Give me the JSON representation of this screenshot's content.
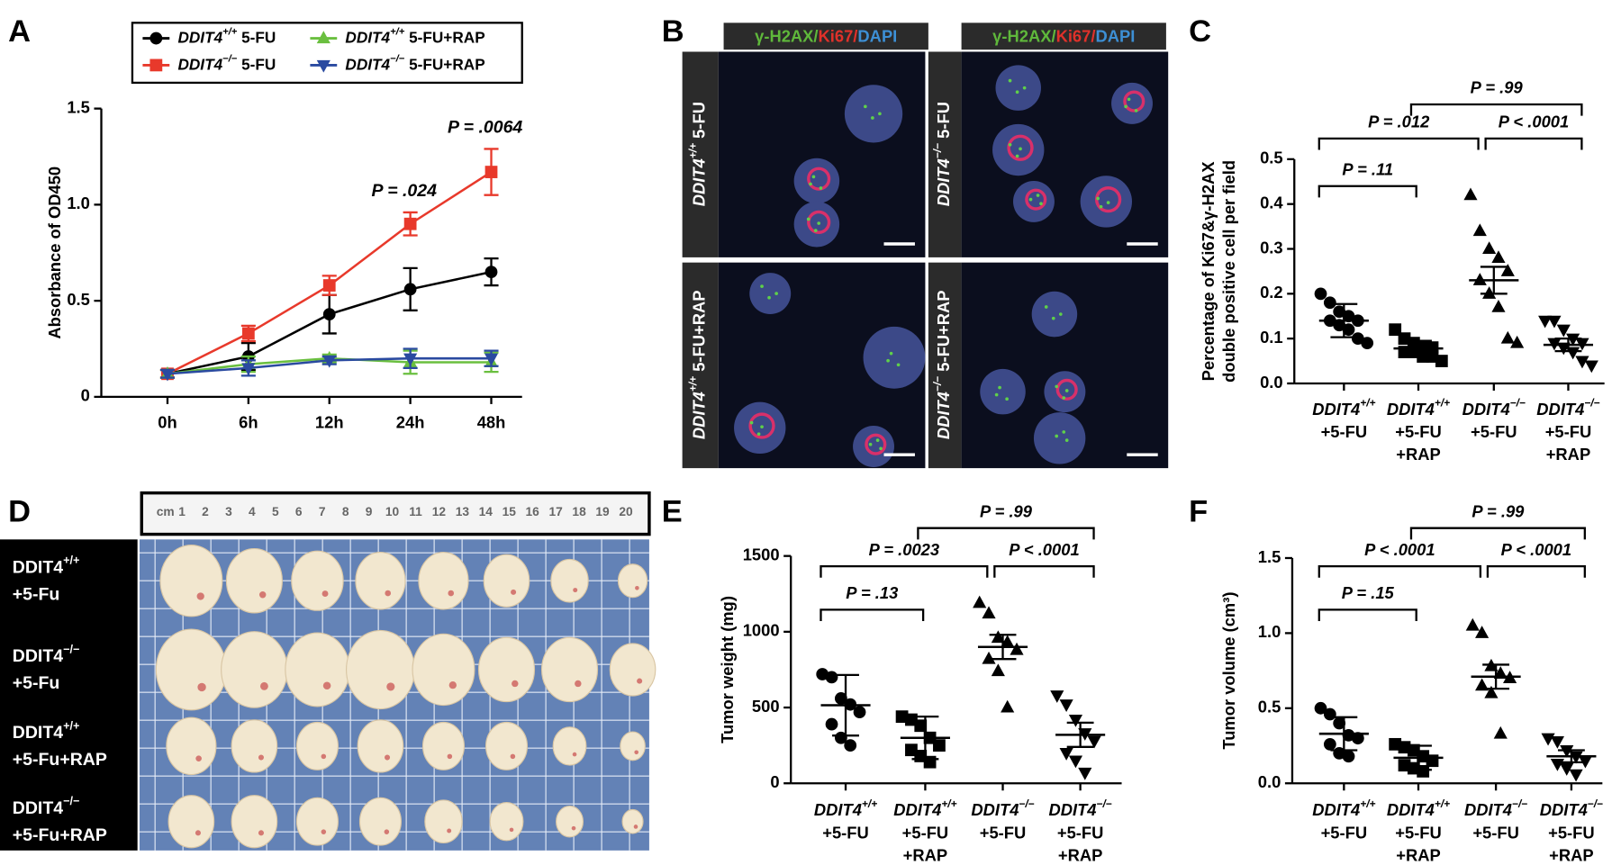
{
  "chart_data": [
    {
      "panel": "A",
      "type": "line",
      "categories": [
        "0h",
        "6h",
        "12h",
        "24h",
        "48h"
      ],
      "ylim": [
        0,
        1.5
      ],
      "yticks": [
        0,
        0.5,
        {
          "value": 1,
          "label": "1.0"
        },
        1.5
      ],
      "y_label": "Absorbance of OD450",
      "series": [
        {
          "name": "DDIT4+/+ 5-FU",
          "color": "#000000",
          "marker": "circle",
          "values": [
            0.12,
            0.21,
            0.43,
            0.56,
            0.65
          ],
          "errors": [
            0.02,
            0.07,
            0.1,
            0.11,
            0.07
          ]
        },
        {
          "name": "DDIT4−/− 5-FU",
          "color": "#e8392b",
          "marker": "square",
          "values": [
            0.12,
            0.33,
            0.58,
            0.9,
            1.17
          ],
          "errors": [
            0.02,
            0.04,
            0.05,
            0.06,
            0.12
          ]
        },
        {
          "name": "DDIT4+/+ 5-FU+RAP",
          "color": "#6abf3f",
          "marker": "triangle-up",
          "values": [
            0.12,
            0.17,
            0.2,
            0.18,
            0.18
          ],
          "errors": [
            0.02,
            0.04,
            0.02,
            0.06,
            0.05
          ]
        },
        {
          "name": "DDIT4−/− 5-FU+RAP",
          "color": "#2a4aa0",
          "marker": "triangle-down",
          "values": [
            0.12,
            0.15,
            0.19,
            0.2,
            0.2
          ],
          "errors": [
            0.02,
            0.04,
            0.02,
            0.05,
            0.04
          ]
        }
      ],
      "annotations": [
        {
          "text": "P = .024",
          "x": "24h"
        },
        {
          "text": "P = .0064",
          "x": "48h"
        }
      ]
    },
    {
      "panel": "C",
      "type": "dot",
      "categories": [
        [
          "DDIT4+/+",
          "+5-FU"
        ],
        [
          "DDIT4+/+",
          "+5-FU",
          "+RAP"
        ],
        [
          "DDIT4−/−",
          "+5-FU"
        ],
        [
          "DDIT4−/−",
          "+5-FU",
          "+RAP"
        ]
      ],
      "y_label": [
        "Percentage of Ki67&γ-H2AX",
        "double positive cell per field"
      ],
      "ylim": [
        0,
        0.5
      ],
      "yticks": [
        {
          "value": 0,
          "label": "0.0"
        },
        0.1,
        0.2,
        0.3,
        0.4,
        0.5
      ],
      "markers": [
        "circle",
        "square",
        "triangle-up",
        "triangle-down"
      ],
      "points": [
        [
          0.2,
          0.18,
          0.16,
          0.15,
          0.14,
          0.14,
          0.13,
          0.12,
          0.1,
          0.09
        ],
        [
          0.12,
          0.1,
          0.09,
          0.08,
          0.08,
          0.07,
          0.07,
          0.06,
          0.06,
          0.05
        ],
        [
          0.42,
          0.34,
          0.3,
          0.28,
          0.25,
          0.23,
          0.2,
          0.17,
          0.1,
          0.09
        ],
        [
          0.14,
          0.14,
          0.12,
          0.1,
          0.09,
          0.09,
          0.08,
          0.07,
          0.05,
          0.04
        ]
      ],
      "mean": [
        0.14,
        0.078,
        0.23,
        0.086
      ],
      "error": [
        0.037,
        0.017,
        0.03,
        0.014
      ],
      "brackets": [
        {
          "groups": [
            0,
            1
          ],
          "label": "P = .11"
        },
        {
          "groups": [
            0,
            2
          ],
          "label": "P = .012"
        },
        {
          "groups": [
            2,
            3
          ],
          "label": "P < .0001"
        },
        {
          "groups": [
            1,
            3
          ],
          "label": "P = .99"
        }
      ]
    },
    {
      "panel": "E",
      "type": "dot",
      "categories": [
        [
          "DDIT4+/+",
          "+5-FU"
        ],
        [
          "DDIT4+/+",
          "+5-FU",
          "+RAP"
        ],
        [
          "DDIT4−/−",
          "+5-FU"
        ],
        [
          "DDIT4−/−",
          "+5-FU",
          "+RAP"
        ]
      ],
      "y_label": [
        "Tumor weight (mg)"
      ],
      "ylim": [
        0,
        1500
      ],
      "yticks": [
        0,
        500,
        1000,
        1500
      ],
      "markers": [
        "circle",
        "square",
        "triangle-up",
        "triangle-down"
      ],
      "points": [
        [
          720,
          700,
          560,
          520,
          470,
          390,
          300,
          250
        ],
        [
          440,
          420,
          380,
          300,
          250,
          220,
          180,
          140
        ],
        [
          1190,
          1120,
          960,
          930,
          880,
          820,
          740,
          500
        ],
        [
          580,
          520,
          420,
          330,
          280,
          200,
          150,
          70
        ]
      ],
      "mean": [
        515,
        300,
        900,
        320
      ],
      "error": [
        200,
        140,
        80,
        80
      ],
      "brackets": [
        {
          "groups": [
            0,
            1
          ],
          "label": "P = .13"
        },
        {
          "groups": [
            0,
            2
          ],
          "label": "P = .0023"
        },
        {
          "groups": [
            2,
            3
          ],
          "label": "P < .0001"
        },
        {
          "groups": [
            1,
            3
          ],
          "label": "P = .99"
        }
      ]
    },
    {
      "panel": "F",
      "type": "dot",
      "categories": [
        [
          "DDIT4+/+",
          "+5-FU"
        ],
        [
          "DDIT4+/+",
          "+5-FU",
          "+RAP"
        ],
        [
          "DDIT4−/−",
          "+5-FU"
        ],
        [
          "DDIT4−/−",
          "+5-FU",
          "+RAP"
        ]
      ],
      "y_label": [
        "Tumor volume (cm³)"
      ],
      "ylim": [
        0,
        1.5
      ],
      "yticks": [
        {
          "value": 0,
          "label": "0.0"
        },
        0.5,
        {
          "value": 1,
          "label": "1.0"
        },
        1.5
      ],
      "markers": [
        "circle",
        "square",
        "triangle-up",
        "triangle-down"
      ],
      "points": [
        [
          0.5,
          0.46,
          0.4,
          0.32,
          0.3,
          0.26,
          0.2,
          0.18
        ],
        [
          0.26,
          0.24,
          0.22,
          0.18,
          0.15,
          0.12,
          0.1,
          0.08
        ],
        [
          1.05,
          1.0,
          0.78,
          0.73,
          0.7,
          0.65,
          0.6,
          0.33
        ],
        [
          0.3,
          0.28,
          0.22,
          0.18,
          0.15,
          0.13,
          0.1,
          0.06
        ]
      ],
      "mean": [
        0.33,
        0.17,
        0.71,
        0.18
      ],
      "error": [
        0.11,
        0.08,
        0.08,
        0.04
      ],
      "brackets": [
        {
          "groups": [
            0,
            1
          ],
          "label": "P = .15"
        },
        {
          "groups": [
            0,
            2
          ],
          "label": "P < .0001"
        },
        {
          "groups": [
            2,
            3
          ],
          "label": "P < .0001"
        },
        {
          "groups": [
            1,
            3
          ],
          "label": "P = .99"
        }
      ]
    }
  ],
  "panel_b": {
    "panel": "B",
    "header": [
      {
        "text": "γ-H2AX/",
        "color": "#5fb83b"
      },
      {
        "text": "Ki67/",
        "color": "#e0312a"
      },
      {
        "text": "DAPI",
        "color": "#3d8fd4"
      }
    ],
    "labels": [
      [
        "DDIT4+/+ 5-FU",
        "DDIT4+/+ 5-FU+RAP"
      ],
      [
        "DDIT4−/− 5-FU",
        "DDIT4−/− 5-FU+RAP"
      ]
    ]
  },
  "panel_d": {
    "panel": "D",
    "ruler": [
      "cm",
      "1",
      "2",
      "3",
      "4",
      "5",
      "6",
      "7",
      "8",
      "9",
      "10",
      "11",
      "12",
      "13",
      "14",
      "15",
      "16",
      "17",
      "18",
      "19",
      "20"
    ],
    "labels": [
      [
        "DDIT4+/+",
        "+5-Fu"
      ],
      [
        "DDIT4−/−",
        "+5-Fu"
      ],
      [
        "DDIT4+/+",
        "+5-Fu+RAP"
      ],
      [
        "DDIT4−/−",
        "+5-Fu+RAP"
      ]
    ]
  }
}
